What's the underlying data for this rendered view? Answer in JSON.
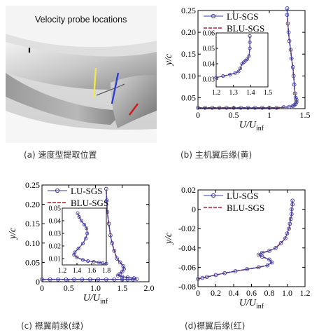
{
  "panels": [
    {
      "id": "a",
      "caption": "(a) 速度型提取位置",
      "image_label": "Velocity probe locations"
    },
    {
      "id": "b",
      "caption": "(b) 主机翼后缘(黄)"
    },
    {
      "id": "c",
      "caption": "(c) 襟翼前缘(绿)"
    },
    {
      "id": "d",
      "caption": "(d)襟翼后缘(红)"
    }
  ],
  "colors": {
    "lu": "#3d3d9e",
    "blu": "#b0182c",
    "yellow": "#f2e84a",
    "blue": "#2b3fd6",
    "red": "#d11a1a"
  },
  "chart_data": [
    {
      "type": "line",
      "panel": "b",
      "xlabel_main": "U/U",
      "xlabel_sub": "inf",
      "ylabel": "y/c",
      "xlim": [
        0,
        1.5
      ],
      "ylim": [
        0.025,
        0.25
      ],
      "xticks": [
        "0",
        "0.5",
        "1",
        "1.5"
      ],
      "yticks": [
        "0.05",
        "0.10",
        "0.15",
        "0.20",
        "0.25"
      ],
      "legend": "top-left",
      "series": [
        {
          "name": "LU-SGS",
          "points": [
            [
              0.0,
              0.027
            ],
            [
              0.1,
              0.027
            ],
            [
              0.2,
              0.027
            ],
            [
              0.3,
              0.027
            ],
            [
              0.4,
              0.027
            ],
            [
              0.5,
              0.027
            ],
            [
              0.6,
              0.027
            ],
            [
              0.7,
              0.027
            ],
            [
              0.8,
              0.027
            ],
            [
              0.9,
              0.027
            ],
            [
              1.0,
              0.027
            ],
            [
              1.1,
              0.027
            ],
            [
              1.2,
              0.028
            ],
            [
              1.28,
              0.029
            ],
            [
              1.33,
              0.031
            ],
            [
              1.35,
              0.033
            ],
            [
              1.37,
              0.036
            ],
            [
              1.38,
              0.04
            ],
            [
              1.38,
              0.045
            ],
            [
              1.37,
              0.05
            ],
            [
              1.36,
              0.06
            ],
            [
              1.35,
              0.08
            ],
            [
              1.34,
              0.1
            ],
            [
              1.33,
              0.12
            ],
            [
              1.31,
              0.14
            ],
            [
              1.3,
              0.16
            ],
            [
              1.28,
              0.18
            ],
            [
              1.27,
              0.2
            ],
            [
              1.26,
              0.22
            ],
            [
              1.25,
              0.24
            ],
            [
              1.25,
              0.255
            ]
          ]
        },
        {
          "name": "BLU-SGS",
          "points": [
            [
              0.0,
              0.027
            ],
            [
              0.1,
              0.027
            ],
            [
              0.2,
              0.027
            ],
            [
              0.3,
              0.027
            ],
            [
              0.4,
              0.027
            ],
            [
              0.5,
              0.027
            ],
            [
              0.6,
              0.027
            ],
            [
              0.7,
              0.027
            ],
            [
              0.8,
              0.027
            ],
            [
              0.9,
              0.027
            ],
            [
              1.0,
              0.027
            ],
            [
              1.1,
              0.027
            ],
            [
              1.2,
              0.028
            ],
            [
              1.28,
              0.029
            ],
            [
              1.33,
              0.031
            ],
            [
              1.35,
              0.033
            ],
            [
              1.37,
              0.036
            ],
            [
              1.38,
              0.04
            ],
            [
              1.38,
              0.045
            ],
            [
              1.37,
              0.05
            ],
            [
              1.36,
              0.06
            ],
            [
              1.35,
              0.08
            ],
            [
              1.34,
              0.1
            ],
            [
              1.33,
              0.12
            ],
            [
              1.31,
              0.14
            ],
            [
              1.3,
              0.16
            ],
            [
              1.28,
              0.18
            ],
            [
              1.27,
              0.2
            ],
            [
              1.26,
              0.22
            ],
            [
              1.25,
              0.24
            ],
            [
              1.25,
              0.255
            ]
          ]
        }
      ],
      "inset": {
        "xlim": [
          1.2,
          1.5
        ],
        "ylim": [
          0.025,
          0.06
        ],
        "xticks": [
          "1.2",
          "1.3",
          "1.4",
          "1.5"
        ],
        "yticks": [
          "0.03",
          "0.04",
          "0.05",
          "0.06"
        ],
        "points": [
          [
            1.2,
            0.031
          ],
          [
            1.24,
            0.032
          ],
          [
            1.28,
            0.033
          ],
          [
            1.31,
            0.034
          ],
          [
            1.33,
            0.035
          ],
          [
            1.34,
            0.037
          ],
          [
            1.35,
            0.04
          ],
          [
            1.36,
            0.041
          ],
          [
            1.37,
            0.042
          ],
          [
            1.38,
            0.043
          ],
          [
            1.39,
            0.045
          ],
          [
            1.395,
            0.05
          ],
          [
            1.395,
            0.054
          ],
          [
            1.395,
            0.058
          ]
        ]
      }
    },
    {
      "type": "line",
      "panel": "c",
      "xlabel_main": "U/U",
      "xlabel_sub": "inf",
      "ylabel": "y/c",
      "xlim": [
        0,
        2.0
      ],
      "ylim": [
        0,
        0.25
      ],
      "xticks": [
        "0",
        "0.5",
        "1.0",
        "1.5",
        "2.0"
      ],
      "yticks": [
        "0",
        "0.05",
        "0.10",
        "0.15",
        "0.20",
        "0.25"
      ],
      "legend": "top-left",
      "series": [
        {
          "name": "LU-SGS",
          "points": [
            [
              0.0,
              0.006
            ],
            [
              0.15,
              0.006
            ],
            [
              0.3,
              0.006
            ],
            [
              0.45,
              0.006
            ],
            [
              0.6,
              0.006
            ],
            [
              0.75,
              0.006
            ],
            [
              0.9,
              0.006
            ],
            [
              1.05,
              0.006
            ],
            [
              1.2,
              0.006
            ],
            [
              1.35,
              0.006
            ],
            [
              1.5,
              0.006
            ],
            [
              1.6,
              0.006
            ],
            [
              1.7,
              0.006
            ],
            [
              1.77,
              0.007
            ],
            [
              1.72,
              0.009
            ],
            [
              1.6,
              0.011
            ],
            [
              1.5,
              0.013
            ],
            [
              1.42,
              0.016
            ],
            [
              1.45,
              0.02
            ],
            [
              1.5,
              0.026
            ],
            [
              1.53,
              0.033
            ],
            [
              1.52,
              0.04
            ],
            [
              1.46,
              0.05
            ],
            [
              1.4,
              0.06
            ],
            [
              1.35,
              0.08
            ],
            [
              1.31,
              0.1
            ],
            [
              1.28,
              0.12
            ],
            [
              1.25,
              0.15
            ],
            [
              1.22,
              0.18
            ],
            [
              1.21,
              0.21
            ],
            [
              1.2,
              0.24
            ]
          ]
        },
        {
          "name": "BLU-SGS",
          "points": [
            [
              0.0,
              0.006
            ],
            [
              0.15,
              0.006
            ],
            [
              0.3,
              0.006
            ],
            [
              0.45,
              0.006
            ],
            [
              0.6,
              0.006
            ],
            [
              0.75,
              0.006
            ],
            [
              0.9,
              0.006
            ],
            [
              1.05,
              0.006
            ],
            [
              1.2,
              0.006
            ],
            [
              1.35,
              0.006
            ],
            [
              1.5,
              0.006
            ],
            [
              1.6,
              0.006
            ],
            [
              1.7,
              0.006
            ],
            [
              1.77,
              0.007
            ],
            [
              1.72,
              0.009
            ],
            [
              1.6,
              0.011
            ],
            [
              1.5,
              0.013
            ],
            [
              1.42,
              0.016
            ],
            [
              1.45,
              0.02
            ],
            [
              1.5,
              0.026
            ],
            [
              1.53,
              0.033
            ],
            [
              1.52,
              0.04
            ],
            [
              1.46,
              0.05
            ],
            [
              1.4,
              0.06
            ],
            [
              1.35,
              0.08
            ],
            [
              1.31,
              0.1
            ],
            [
              1.28,
              0.12
            ],
            [
              1.25,
              0.15
            ],
            [
              1.22,
              0.18
            ],
            [
              1.21,
              0.21
            ],
            [
              1.2,
              0.24
            ]
          ]
        }
      ],
      "inset": {
        "xlim": [
          1.2,
          1.8
        ],
        "ylim": [
          0.005,
          0.05
        ],
        "xticks": [
          "1.2",
          "1.4",
          "1.6",
          "1.8"
        ],
        "yticks": [
          "0.01",
          "0.02",
          "0.03",
          "0.04",
          "0.05"
        ],
        "points": [
          [
            1.8,
            0.006
          ],
          [
            1.75,
            0.0065
          ],
          [
            1.7,
            0.007
          ],
          [
            1.63,
            0.0075
          ],
          [
            1.55,
            0.008
          ],
          [
            1.48,
            0.009
          ],
          [
            1.4,
            0.011
          ],
          [
            1.36,
            0.013
          ],
          [
            1.37,
            0.015
          ],
          [
            1.42,
            0.018
          ],
          [
            1.48,
            0.022
          ],
          [
            1.52,
            0.026
          ],
          [
            1.54,
            0.03
          ],
          [
            1.53,
            0.034
          ],
          [
            1.5,
            0.037
          ],
          [
            1.46,
            0.04
          ],
          [
            1.43,
            0.043
          ],
          [
            1.41,
            0.046
          ]
        ]
      }
    },
    {
      "type": "line",
      "panel": "d",
      "xlabel_main": "U/U",
      "xlabel_sub": "inf",
      "ylabel": "y/c",
      "xlim": [
        0,
        1.2
      ],
      "ylim": [
        -0.08,
        0.02
      ],
      "xticks": [
        "0",
        "0.2",
        "0.4",
        "0.6",
        "0.8",
        "1.0",
        "1.2"
      ],
      "yticks": [
        "-0.08",
        "-0.06",
        "-0.04",
        "-0.02",
        "0",
        "0.02"
      ],
      "legend": "top-left",
      "series": [
        {
          "name": "LU-SGS",
          "points": [
            [
              0.0,
              -0.072
            ],
            [
              0.05,
              -0.071
            ],
            [
              0.1,
              -0.07
            ],
            [
              0.2,
              -0.068
            ],
            [
              0.3,
              -0.066
            ],
            [
              0.42,
              -0.064
            ],
            [
              0.55,
              -0.062
            ],
            [
              0.68,
              -0.06
            ],
            [
              0.78,
              -0.058
            ],
            [
              0.83,
              -0.055
            ],
            [
              0.8,
              -0.052
            ],
            [
              0.72,
              -0.049
            ],
            [
              0.68,
              -0.047
            ],
            [
              0.72,
              -0.045
            ],
            [
              0.8,
              -0.043
            ],
            [
              0.87,
              -0.04
            ],
            [
              0.93,
              -0.035
            ],
            [
              0.98,
              -0.03
            ],
            [
              1.0,
              -0.025
            ],
            [
              1.02,
              -0.02
            ],
            [
              1.03,
              -0.015
            ],
            [
              1.04,
              -0.01
            ],
            [
              1.05,
              -0.005
            ],
            [
              1.05,
              0.0
            ],
            [
              1.06,
              0.005
            ],
            [
              1.06,
              0.009
            ]
          ]
        },
        {
          "name": "BLU-SGS",
          "points": [
            [
              0.0,
              -0.072
            ],
            [
              0.05,
              -0.071
            ],
            [
              0.1,
              -0.07
            ],
            [
              0.2,
              -0.068
            ],
            [
              0.3,
              -0.066
            ],
            [
              0.42,
              -0.064
            ],
            [
              0.55,
              -0.062
            ],
            [
              0.68,
              -0.06
            ],
            [
              0.78,
              -0.058
            ],
            [
              0.83,
              -0.055
            ],
            [
              0.8,
              -0.052
            ],
            [
              0.72,
              -0.049
            ],
            [
              0.68,
              -0.047
            ],
            [
              0.72,
              -0.045
            ],
            [
              0.8,
              -0.043
            ],
            [
              0.87,
              -0.04
            ],
            [
              0.93,
              -0.035
            ],
            [
              0.98,
              -0.03
            ],
            [
              1.0,
              -0.025
            ],
            [
              1.02,
              -0.02
            ],
            [
              1.03,
              -0.015
            ],
            [
              1.04,
              -0.01
            ],
            [
              1.05,
              -0.005
            ],
            [
              1.05,
              0.0
            ],
            [
              1.06,
              0.005
            ],
            [
              1.06,
              0.009
            ]
          ]
        }
      ]
    }
  ]
}
